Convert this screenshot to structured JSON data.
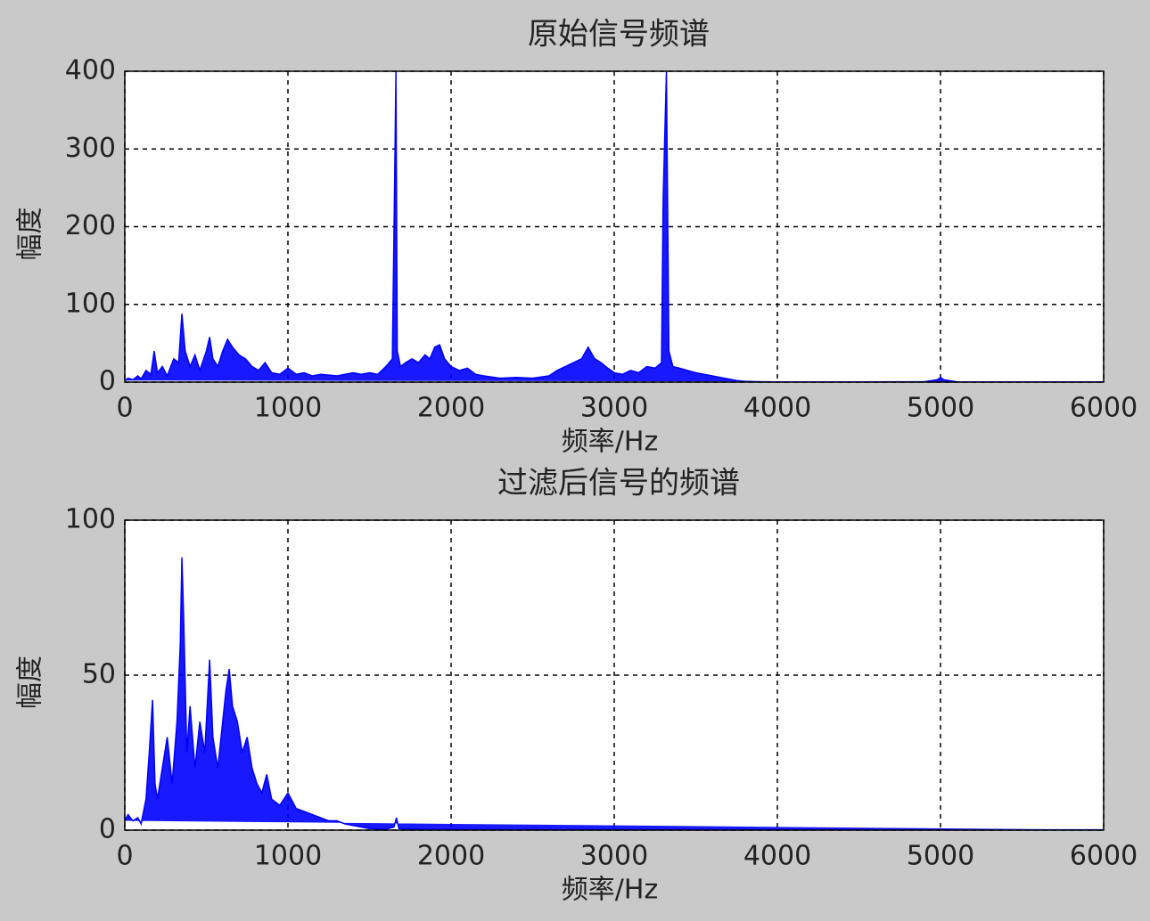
{
  "chart_data": [
    {
      "type": "line",
      "title": "原始信号频谱",
      "xlabel": "频率/Hz",
      "ylabel": "幅度",
      "color": "#0000ff",
      "grid": true,
      "xlim": [
        0,
        6000
      ],
      "xticks": [
        0,
        1000,
        2000,
        3000,
        4000,
        5000,
        6000
      ],
      "ylim": [
        0,
        400
      ],
      "yticks": [
        0,
        100,
        200,
        300,
        400
      ],
      "x": [
        0,
        20,
        50,
        80,
        100,
        130,
        160,
        180,
        200,
        230,
        260,
        300,
        330,
        350,
        370,
        400,
        430,
        460,
        500,
        520,
        540,
        570,
        600,
        630,
        660,
        700,
        740,
        780,
        820,
        860,
        900,
        950,
        1000,
        1050,
        1100,
        1150,
        1200,
        1250,
        1300,
        1350,
        1400,
        1450,
        1500,
        1550,
        1600,
        1640,
        1655,
        1662,
        1670,
        1690,
        1720,
        1760,
        1800,
        1840,
        1870,
        1900,
        1930,
        1960,
        2000,
        2050,
        2100,
        2150,
        2200,
        2300,
        2400,
        2500,
        2600,
        2650,
        2700,
        2750,
        2800,
        2840,
        2880,
        2920,
        2960,
        3000,
        3050,
        3100,
        3150,
        3200,
        3250,
        3290,
        3300,
        3320,
        3335,
        3360,
        3400,
        3450,
        3500,
        3550,
        3600,
        3650,
        3700,
        3750,
        3800,
        3900,
        4000,
        4500,
        4900,
        4980,
        5000,
        5020,
        5100,
        5500,
        6000
      ],
      "values": [
        2,
        5,
        3,
        8,
        4,
        15,
        10,
        40,
        12,
        20,
        8,
        30,
        25,
        88,
        40,
        20,
        35,
        15,
        40,
        58,
        30,
        20,
        40,
        55,
        45,
        35,
        30,
        20,
        15,
        25,
        12,
        10,
        18,
        10,
        12,
        8,
        10,
        9,
        8,
        10,
        12,
        10,
        12,
        10,
        20,
        30,
        275,
        400,
        40,
        20,
        25,
        30,
        25,
        35,
        30,
        45,
        48,
        30,
        20,
        15,
        18,
        10,
        8,
        5,
        6,
        5,
        8,
        15,
        20,
        25,
        30,
        45,
        30,
        25,
        18,
        12,
        10,
        15,
        12,
        20,
        18,
        25,
        235,
        400,
        40,
        20,
        18,
        15,
        12,
        10,
        8,
        6,
        4,
        2,
        1,
        0.5,
        0.3,
        0.3,
        0.5,
        3,
        6,
        3,
        0.5,
        0.3,
        0.3
      ]
    },
    {
      "type": "line",
      "title": "过滤后信号的频谱",
      "xlabel": "频率/Hz",
      "ylabel": "幅度",
      "color": "#0000ff",
      "grid": true,
      "xlim": [
        0,
        6000
      ],
      "xticks": [
        0,
        1000,
        2000,
        3000,
        4000,
        5000,
        6000
      ],
      "ylim": [
        0,
        100
      ],
      "yticks": [
        0,
        50,
        100
      ],
      "x": [
        0,
        20,
        50,
        80,
        100,
        130,
        150,
        170,
        185,
        200,
        230,
        260,
        290,
        320,
        340,
        350,
        360,
        380,
        400,
        430,
        460,
        490,
        520,
        540,
        570,
        600,
        620,
        640,
        660,
        690,
        720,
        750,
        780,
        810,
        840,
        870,
        900,
        950,
        1000,
        1050,
        1100,
        1150,
        1200,
        1250,
        1300,
        1350,
        1400,
        1450,
        1500,
        1600,
        1650,
        1665,
        1680,
        1800,
        2500,
        6000
      ],
      "values": [
        3,
        5,
        3,
        4,
        2,
        10,
        25,
        42,
        15,
        10,
        20,
        30,
        15,
        35,
        60,
        88,
        70,
        25,
        40,
        20,
        35,
        25,
        55,
        30,
        20,
        35,
        45,
        52,
        40,
        35,
        25,
        30,
        20,
        15,
        12,
        18,
        10,
        8,
        12,
        7,
        6,
        5,
        4,
        3,
        3,
        2,
        1.5,
        1,
        0.5,
        0.3,
        1,
        4,
        0.5,
        0.2,
        0.1,
        0.1
      ]
    }
  ]
}
